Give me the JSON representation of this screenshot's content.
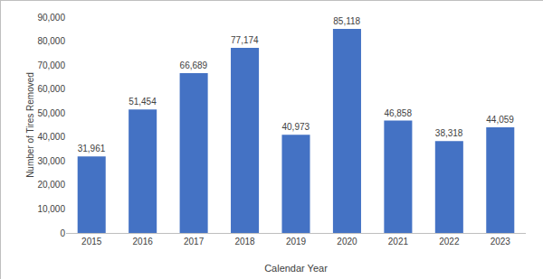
{
  "chart_data": {
    "type": "bar",
    "x_label": "Calendar Year",
    "y_label": "Number of Tires Removed",
    "categories": [
      "2015",
      "2016",
      "2017",
      "2018",
      "2019",
      "2020",
      "2021",
      "2022",
      "2023"
    ],
    "values": [
      31961,
      51454,
      66689,
      77174,
      40973,
      85118,
      46858,
      38318,
      44059
    ],
    "value_labels": [
      "31,961",
      "51,454",
      "66,689",
      "77,174",
      "40,973",
      "85,118",
      "46,858",
      "38,318",
      "44,059"
    ],
    "color": "#4472c4",
    "ylim": [
      0,
      90000
    ],
    "yticks": [
      0,
      {
        "value": 10000,
        "label": "10,000"
      },
      {
        "value": 20000,
        "label": "20,000"
      },
      {
        "value": 30000,
        "label": "30,000"
      },
      {
        "value": 40000,
        "label": "40,000"
      },
      {
        "value": 50000,
        "label": "50,000"
      },
      {
        "value": 60000,
        "label": "60,000"
      },
      {
        "value": 70000,
        "label": "70,000"
      },
      {
        "value": 80000,
        "label": "80,000"
      },
      {
        "value": 90000,
        "label": "90,000"
      }
    ],
    "grid": false,
    "data_labels": true
  }
}
